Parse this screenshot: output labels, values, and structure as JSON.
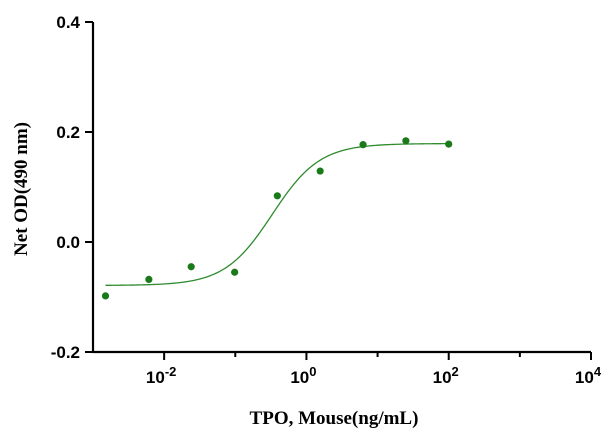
{
  "chart_data": {
    "type": "scatter",
    "title": "",
    "xlabel": "TPO, Mouse(ng/mL)",
    "ylabel": "Net OD(490 nm)",
    "xscale": "log10",
    "xlim": [
      0.001,
      10000
    ],
    "ylim": [
      -0.2,
      0.4
    ],
    "x_ticks": [
      {
        "value": 0.01,
        "base": "10",
        "exp": "-2"
      },
      {
        "value": 1,
        "base": "10",
        "exp": "0"
      },
      {
        "value": 100,
        "base": "10",
        "exp": "2"
      },
      {
        "value": 10000,
        "base": "10",
        "exp": "4"
      }
    ],
    "y_ticks": [
      {
        "value": -0.2,
        "label": "-0.2"
      },
      {
        "value": 0.0,
        "label": "0.0"
      },
      {
        "value": 0.2,
        "label": "0.2"
      },
      {
        "value": 0.4,
        "label": "0.4"
      }
    ],
    "series": [
      {
        "x": [
          0.0015,
          0.0061,
          0.024,
          0.098,
          0.39,
          1.56,
          6.25,
          25,
          100
        ],
        "y": [
          -0.098,
          -0.068,
          -0.045,
          -0.055,
          0.084,
          0.129,
          0.177,
          0.184,
          0.178
        ],
        "fit": {
          "model": "4PL",
          "bottom": -0.079,
          "top": 0.179,
          "ec50": 0.33,
          "hill": 1.3,
          "x_range": [
            0.0015,
            100
          ]
        }
      }
    ],
    "grid": false,
    "legend": "none",
    "colors": {
      "points": "#1a7a1a",
      "fit": "#2e8b2e",
      "axes": "#000000"
    }
  }
}
